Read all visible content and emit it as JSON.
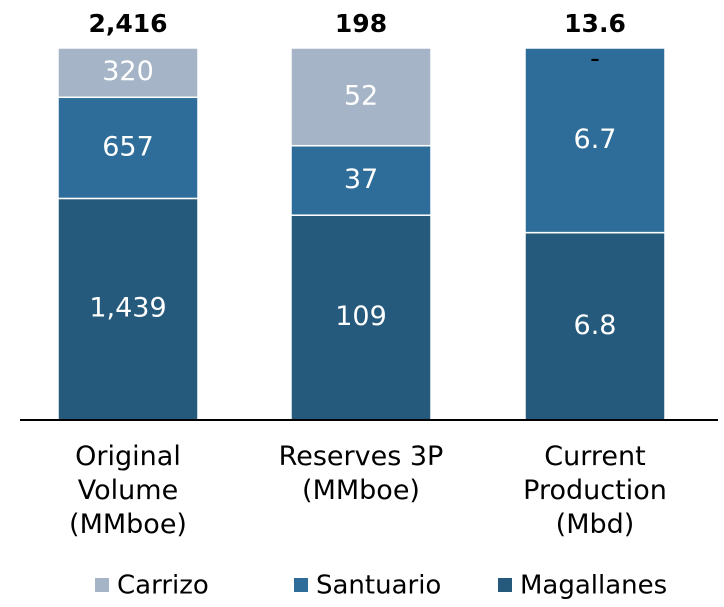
{
  "chart_data": {
    "type": "stacked_bar",
    "categories": [
      "Original Volume (MMboe)",
      "Reserves 3P (MMboe)",
      "Current Production (Mbd)"
    ],
    "totals": [
      {
        "value": 2416,
        "label": "2,416"
      },
      198,
      13.6
    ],
    "series": [
      {
        "name": "Carrizo",
        "color": "#a5b4c6",
        "values": [
          320,
          52,
          0
        ],
        "value_labels": [
          "320",
          "52",
          "-"
        ]
      },
      {
        "name": "Santuario",
        "color": "#2e6d99",
        "values": [
          657,
          37,
          6.7
        ]
      },
      {
        "name": "Magallanes",
        "color": "#255a7c",
        "values": [
          1439,
          109,
          6.8
        ],
        "value_labels": [
          "1,439",
          "109",
          "6.8"
        ]
      }
    ],
    "legend": "bottom"
  }
}
